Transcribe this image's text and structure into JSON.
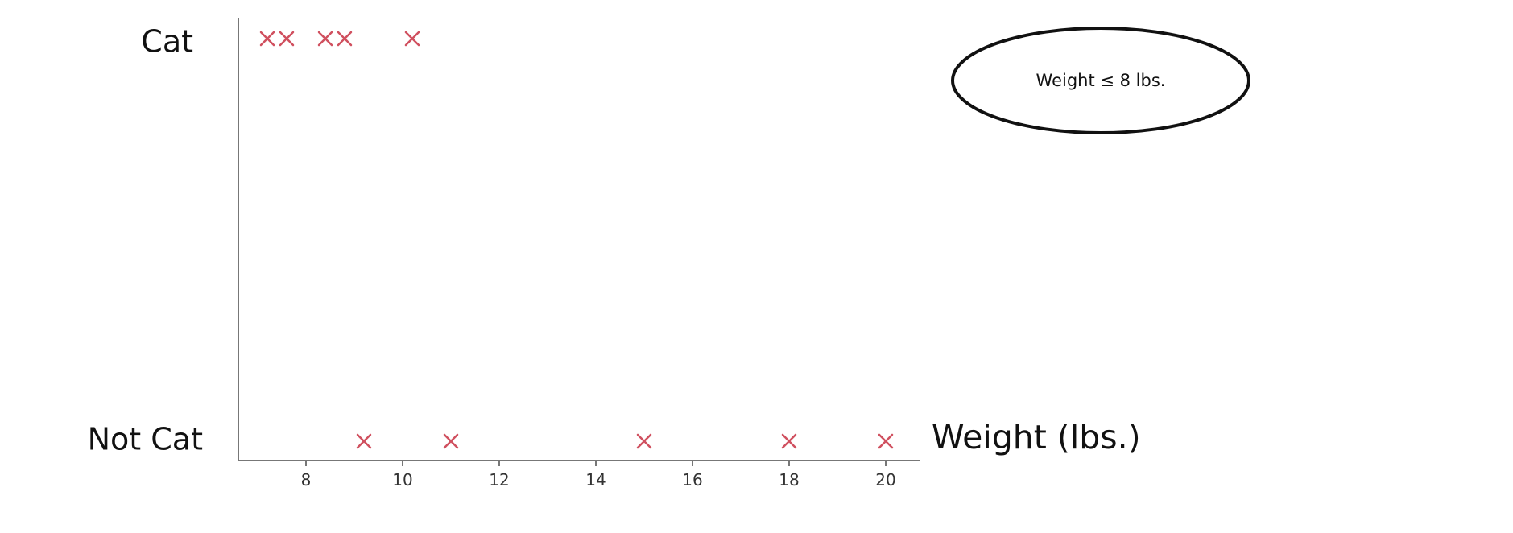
{
  "chart_data": {
    "type": "scatter",
    "title": "",
    "xlabel": "Weight (lbs.)",
    "ylabel": "",
    "xlim": [
      6.6,
      20.7
    ],
    "xticks": [
      8,
      10,
      12,
      14,
      16,
      18,
      20
    ],
    "categories": [
      "Not Cat",
      "Cat"
    ],
    "grid": false,
    "marker": "x",
    "marker_color": "#d0505f",
    "series": [
      {
        "category": "Cat",
        "x": [
          7.2,
          7.6,
          8.4,
          8.8,
          10.2
        ]
      },
      {
        "category": "Not Cat",
        "x": [
          9.2,
          11.0,
          15.0,
          18.0,
          20.0
        ]
      }
    ],
    "annotation": {
      "text": "Weight ≤ 8 lbs.",
      "shape": "ellipse"
    }
  }
}
